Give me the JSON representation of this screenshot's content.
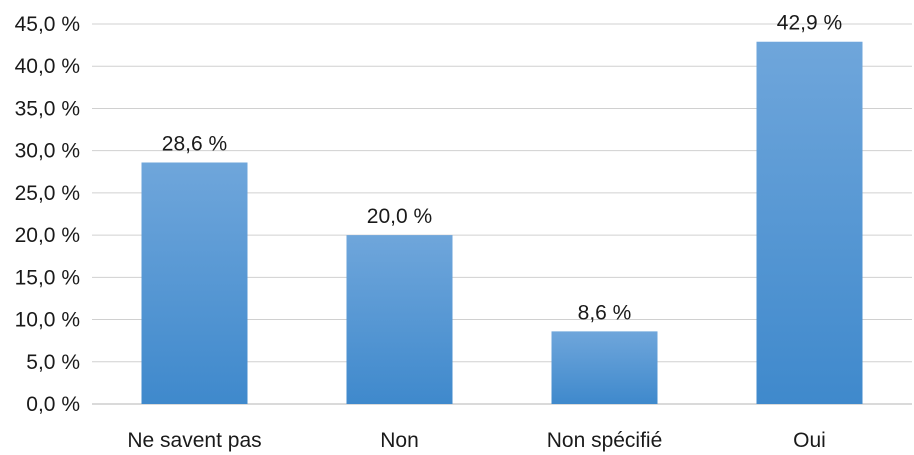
{
  "chart_data": {
    "type": "bar",
    "categories": [
      "Ne savent pas",
      "Non",
      "Non spécifié",
      "Oui"
    ],
    "values": [
      28.6,
      20.0,
      8.6,
      42.9
    ],
    "data_labels": [
      "28,6 %",
      "20,0 %",
      "8,6 %",
      "42,9 %"
    ],
    "title": "",
    "xlabel": "",
    "ylabel": "",
    "ylim": [
      0,
      45
    ],
    "yticks": [
      0,
      5,
      10,
      15,
      20,
      25,
      30,
      35,
      40,
      45
    ],
    "ytick_labels": [
      "0,0 %",
      "5,0 %",
      "10,0 %",
      "15,0 %",
      "20,0 %",
      "25,0 %",
      "30,0 %",
      "35,0 %",
      "40,0 %",
      "45,0 %"
    ],
    "grid": true,
    "legend": "none",
    "colors": {
      "bar_top": "#6fa6db",
      "bar_bottom": "#3f89cc",
      "gridline": "#d0d0d0",
      "text": "#1a1a1a"
    }
  }
}
